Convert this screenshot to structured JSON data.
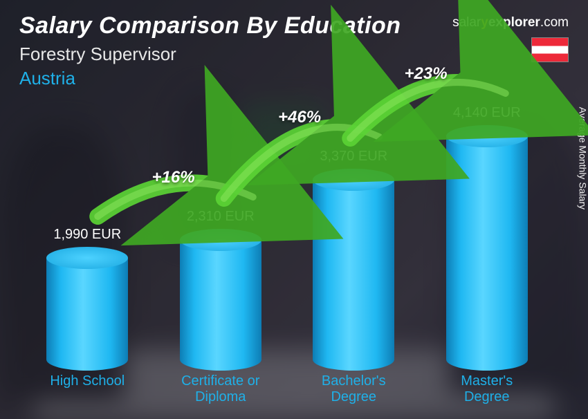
{
  "header": {
    "title": "Salary Comparison By Education",
    "subtitle": "Forestry Supervisor",
    "country": "Austria",
    "brand_prefix": "salar",
    "brand_y": "y",
    "brand_mid": "explorer",
    "brand_suffix": ".com",
    "y_axis_label": "Average Monthly Salary"
  },
  "chart": {
    "type": "bar",
    "max_value": 4140,
    "pixel_scale": 0.082,
    "bar_color_gradient": [
      "#0d7db5",
      "#1fb8f2",
      "#5ad6ff"
    ],
    "label_color": "#1fb0e8",
    "value_color": "#ffffff",
    "arc_color": "#5bd335",
    "arrow_color": "#3fa823",
    "categories": [
      {
        "label": "High School",
        "value": 1990,
        "value_label": "1,990 EUR"
      },
      {
        "label": "Certificate or Diploma",
        "value": 2310,
        "value_label": "2,310 EUR"
      },
      {
        "label": "Bachelor's Degree",
        "value": 3370,
        "value_label": "3,370 EUR"
      },
      {
        "label": "Master's Degree",
        "value": 4140,
        "value_label": "4,140 EUR"
      }
    ],
    "increases": [
      {
        "from": 0,
        "to": 1,
        "pct": "+16%"
      },
      {
        "from": 1,
        "to": 2,
        "pct": "+46%"
      },
      {
        "from": 2,
        "to": 3,
        "pct": "+23%"
      }
    ]
  },
  "flag": {
    "country": "Austria",
    "stripes": [
      "#ed2939",
      "#ffffff",
      "#ed2939"
    ]
  }
}
